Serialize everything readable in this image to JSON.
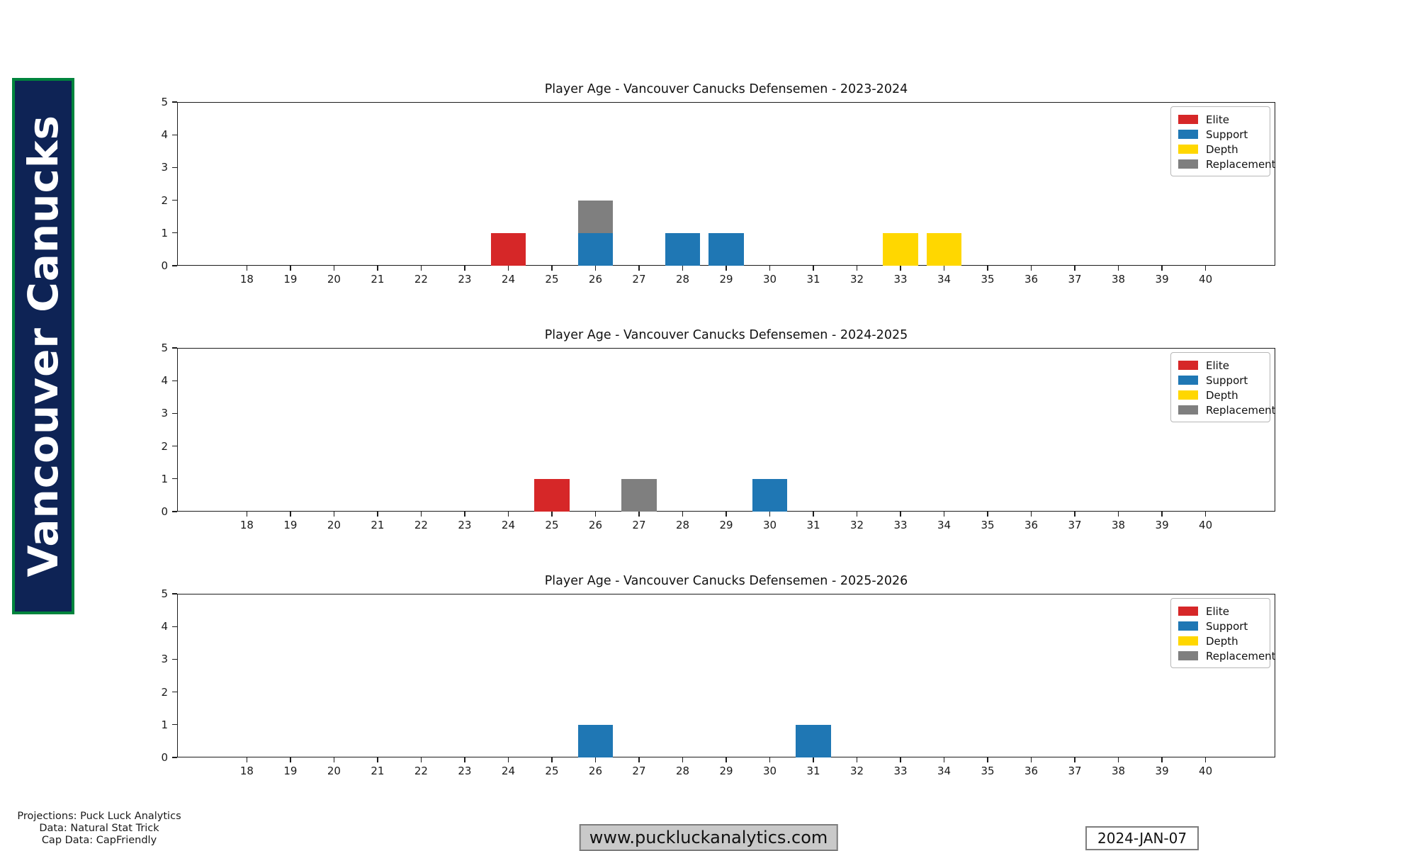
{
  "banner": {
    "team": "Vancouver Canucks",
    "bg_color": "#0e2355",
    "border_color": "#00843D",
    "text_color": "#ffffff"
  },
  "legend": {
    "position": "upper-right",
    "items": [
      {
        "label": "Elite",
        "color": "#d62728"
      },
      {
        "label": "Support",
        "color": "#1f77b4"
      },
      {
        "label": "Depth",
        "color": "#ffd700"
      },
      {
        "label": "Replacement",
        "color": "#7f7f7f"
      }
    ]
  },
  "chart_data": [
    {
      "type": "bar",
      "stacked": true,
      "title": "Player Age - Vancouver Canucks Defensemen - 2023-2024",
      "xlabel": "",
      "ylabel": "",
      "xticks": [
        18,
        19,
        20,
        21,
        22,
        23,
        24,
        25,
        26,
        27,
        28,
        29,
        30,
        31,
        32,
        33,
        34,
        35,
        36,
        37,
        38,
        39,
        40
      ],
      "yticks": [
        0,
        1,
        2,
        3,
        4,
        5
      ],
      "xlim": [
        16.4,
        41.6
      ],
      "ylim": [
        0,
        5
      ],
      "grid": false,
      "legend_entries": [
        "Elite",
        "Support",
        "Depth",
        "Replacement"
      ],
      "bars": [
        {
          "age": 24,
          "segments": [
            {
              "category": "Elite",
              "value": 1
            }
          ]
        },
        {
          "age": 26,
          "segments": [
            {
              "category": "Support",
              "value": 1
            },
            {
              "category": "Replacement",
              "value": 1
            }
          ]
        },
        {
          "age": 28,
          "segments": [
            {
              "category": "Support",
              "value": 1
            }
          ]
        },
        {
          "age": 29,
          "segments": [
            {
              "category": "Support",
              "value": 1
            }
          ]
        },
        {
          "age": 33,
          "segments": [
            {
              "category": "Depth",
              "value": 1
            }
          ]
        },
        {
          "age": 34,
          "segments": [
            {
              "category": "Depth",
              "value": 1
            }
          ]
        }
      ]
    },
    {
      "type": "bar",
      "stacked": true,
      "title": "Player Age - Vancouver Canucks Defensemen - 2024-2025",
      "xlabel": "",
      "ylabel": "",
      "xticks": [
        18,
        19,
        20,
        21,
        22,
        23,
        24,
        25,
        26,
        27,
        28,
        29,
        30,
        31,
        32,
        33,
        34,
        35,
        36,
        37,
        38,
        39,
        40
      ],
      "yticks": [
        0,
        1,
        2,
        3,
        4,
        5
      ],
      "xlim": [
        16.4,
        41.6
      ],
      "ylim": [
        0,
        5
      ],
      "grid": false,
      "legend_entries": [
        "Elite",
        "Support",
        "Depth",
        "Replacement"
      ],
      "bars": [
        {
          "age": 25,
          "segments": [
            {
              "category": "Elite",
              "value": 1
            }
          ]
        },
        {
          "age": 27,
          "segments": [
            {
              "category": "Replacement",
              "value": 1
            }
          ]
        },
        {
          "age": 30,
          "segments": [
            {
              "category": "Support",
              "value": 1
            }
          ]
        }
      ]
    },
    {
      "type": "bar",
      "stacked": true,
      "title": "Player Age - Vancouver Canucks Defensemen - 2025-2026",
      "xlabel": "",
      "ylabel": "",
      "xticks": [
        18,
        19,
        20,
        21,
        22,
        23,
        24,
        25,
        26,
        27,
        28,
        29,
        30,
        31,
        32,
        33,
        34,
        35,
        36,
        37,
        38,
        39,
        40
      ],
      "yticks": [
        0,
        1,
        2,
        3,
        4,
        5
      ],
      "xlim": [
        16.4,
        41.6
      ],
      "ylim": [
        0,
        5
      ],
      "grid": false,
      "legend_entries": [
        "Elite",
        "Support",
        "Depth",
        "Replacement"
      ],
      "bars": [
        {
          "age": 26,
          "segments": [
            {
              "category": "Support",
              "value": 1
            }
          ]
        },
        {
          "age": 31,
          "segments": [
            {
              "category": "Support",
              "value": 1
            }
          ]
        }
      ]
    }
  ],
  "footer": {
    "credit_lines": [
      "Projections: Puck Luck Analytics",
      "Data: Natural Stat Trick",
      "Cap Data: CapFriendly"
    ],
    "website": "www.puckluckanalytics.com",
    "date": "2024-JAN-07"
  }
}
